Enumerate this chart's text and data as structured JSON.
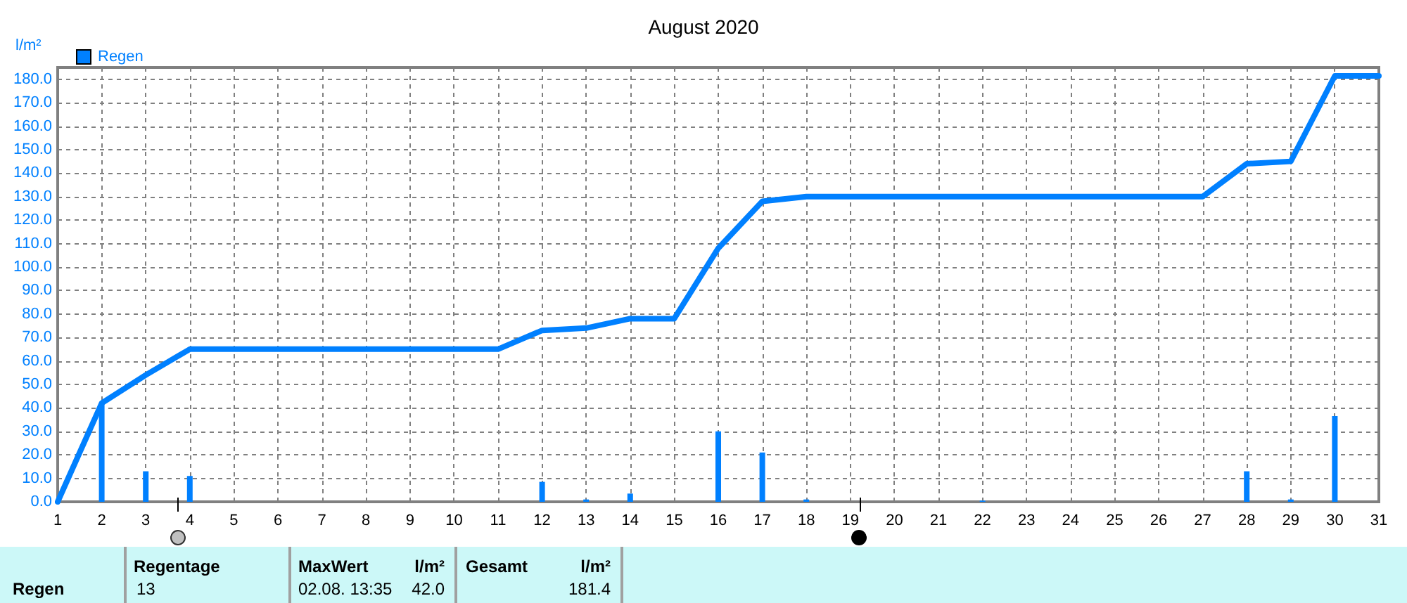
{
  "chart_data": {
    "type": "bar",
    "title": "August 2020",
    "ylabel": "l/m²",
    "x": [
      1,
      2,
      3,
      4,
      5,
      6,
      7,
      8,
      9,
      10,
      11,
      12,
      13,
      14,
      15,
      16,
      17,
      18,
      19,
      20,
      21,
      22,
      23,
      24,
      25,
      26,
      27,
      28,
      29,
      30,
      31
    ],
    "xlim": [
      1,
      31
    ],
    "xticks": [
      1,
      2,
      3,
      4,
      5,
      6,
      7,
      8,
      9,
      10,
      11,
      12,
      13,
      14,
      15,
      16,
      17,
      18,
      19,
      20,
      21,
      22,
      23,
      24,
      25,
      26,
      27,
      28,
      29,
      30,
      31
    ],
    "ylim": [
      0,
      185
    ],
    "yticks": [
      {
        "value": 0,
        "label": "0.0"
      },
      {
        "value": 10,
        "label": "10.0"
      },
      {
        "value": 20,
        "label": "20.0"
      },
      {
        "value": 30,
        "label": "30.0"
      },
      {
        "value": 40,
        "label": "40.0"
      },
      {
        "value": 50,
        "label": "50.0"
      },
      {
        "value": 60,
        "label": "60.0"
      },
      {
        "value": 70,
        "label": "70.0"
      },
      {
        "value": 80,
        "label": "80.0"
      },
      {
        "value": 90,
        "label": "90.0"
      },
      {
        "value": 100,
        "label": "100.0"
      },
      {
        "value": 110,
        "label": "110.0"
      },
      {
        "value": 120,
        "label": "120.0"
      },
      {
        "value": 130,
        "label": "130.0"
      },
      {
        "value": 140,
        "label": "140.0"
      },
      {
        "value": 150,
        "label": "150.0"
      },
      {
        "value": 160,
        "label": "160.0"
      },
      {
        "value": 170,
        "label": "170.0"
      },
      {
        "value": 180,
        "label": "180.0"
      }
    ],
    "series": [
      {
        "name": "Regen",
        "color": "#0080ff",
        "values": [
          0,
          42,
          13,
          11,
          0,
          0,
          0,
          0,
          0,
          0,
          0,
          8.5,
          1,
          3.5,
          0,
          30,
          21,
          1,
          0,
          0,
          0,
          0.5,
          0,
          0,
          0,
          0,
          0,
          13,
          1,
          36.5,
          0
        ]
      },
      {
        "type": "line",
        "color": "#0080ff",
        "values": [
          0,
          42,
          54,
          65,
          65,
          65,
          65,
          65,
          65,
          65,
          65,
          73,
          74,
          78,
          78,
          108,
          128,
          130,
          130,
          130,
          130,
          130,
          130,
          130,
          130,
          130,
          130,
          144,
          145,
          181.4,
          181.4
        ]
      }
    ],
    "legend": "top left",
    "grid": true,
    "marker": "none",
    "line_style": "solid",
    "annotations": [
      "Regen",
      "Regentage",
      "13",
      "MaxWert",
      "l/m²",
      "02.08. 13:35",
      "42.0",
      "Gesamt",
      "l/m²",
      "181.4"
    ]
  }
}
